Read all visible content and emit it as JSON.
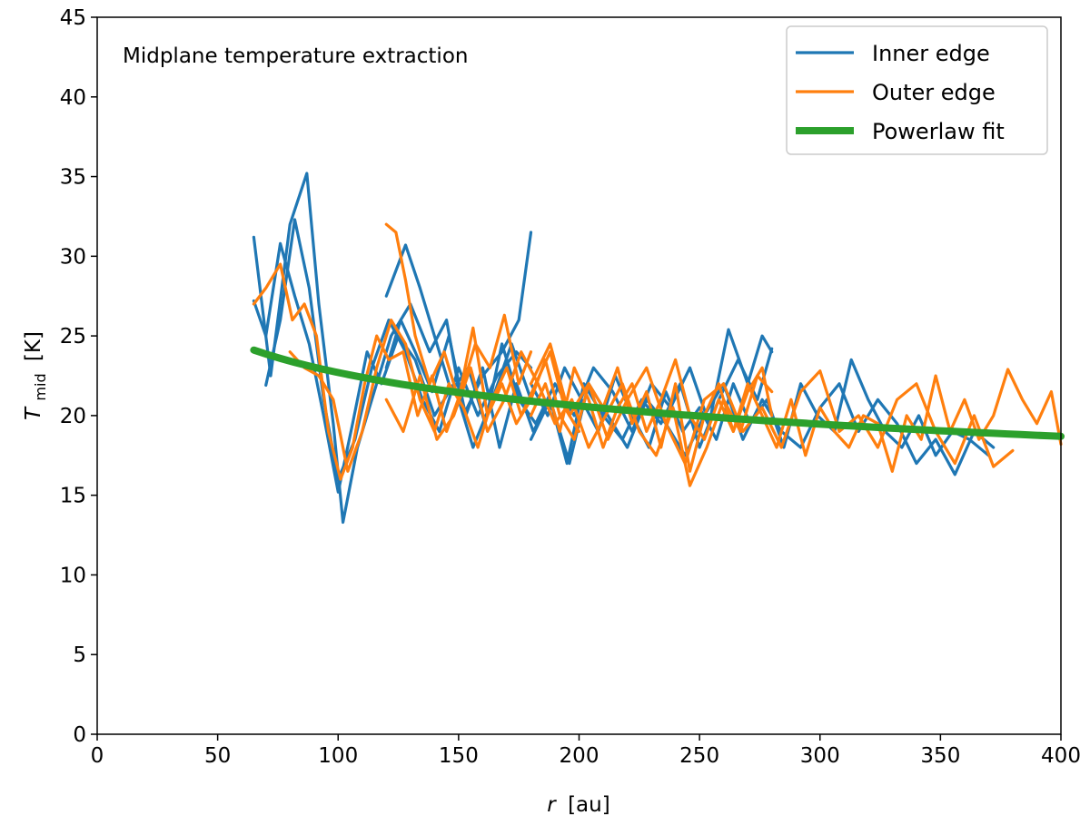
{
  "chart_data": {
    "type": "line",
    "title": "",
    "annotation": "Midplane temperature extraction",
    "xlabel": {
      "symbol": "r",
      "unit": "[au]"
    },
    "ylabel": {
      "symbol": "T",
      "subscript": "mid",
      "unit": "[K]"
    },
    "xlim": [
      0,
      400
    ],
    "ylim": [
      0,
      45
    ],
    "xticks": [
      0,
      50,
      100,
      150,
      200,
      250,
      300,
      350,
      400
    ],
    "yticks": [
      0,
      5,
      10,
      15,
      20,
      25,
      30,
      35,
      40,
      45
    ],
    "grid": false,
    "legend_position": "top-right",
    "colors": {
      "inner": "#1f77b4",
      "outer": "#ff7f0e",
      "fit": "#2ca02c"
    },
    "legend": [
      {
        "name": "Inner edge",
        "color": "#1f77b4"
      },
      {
        "name": "Outer edge",
        "color": "#ff7f0e"
      },
      {
        "name": "Powerlaw fit",
        "color": "#2ca02c"
      }
    ],
    "series": [
      {
        "name": "Inner edge",
        "group": "inner",
        "color": "#1f77b4",
        "x": [
          65,
          72,
          80,
          87,
          92,
          98,
          102,
          108,
          115,
          122,
          130,
          138,
          145,
          152,
          160,
          168,
          175,
          180
        ],
        "y": [
          31.2,
          22.5,
          32,
          35.2,
          27,
          19.5,
          13.3,
          18,
          21.5,
          25,
          27,
          24,
          26,
          20,
          22.5,
          24,
          26,
          31.5
        ]
      },
      {
        "name": "Inner edge",
        "group": "inner",
        "color": "#1f77b4",
        "x": [
          65,
          70,
          76,
          82,
          88,
          94,
          100,
          106,
          112,
          118,
          125,
          132,
          140,
          148,
          156,
          164,
          172,
          180
        ],
        "y": [
          27.2,
          25,
          30.8,
          27.5,
          24.5,
          20,
          15.2,
          19.5,
          24,
          22,
          25,
          23.5,
          20,
          22,
          18,
          21,
          24.5,
          21
        ]
      },
      {
        "name": "Inner edge",
        "group": "inner",
        "color": "#1f77b4",
        "x": [
          70,
          76,
          82,
          88,
          94,
          100,
          107,
          114,
          121,
          128,
          135,
          142,
          150,
          158,
          166,
          174,
          180
        ],
        "y": [
          21.9,
          26,
          32.3,
          28,
          21,
          16,
          18.5,
          23,
          26,
          24,
          21,
          19,
          23,
          20,
          22.5,
          24,
          23
        ]
      },
      {
        "name": "Inner edge",
        "group": "inner",
        "color": "#1f77b4",
        "x": [
          120,
          128,
          134,
          140,
          147,
          154,
          161,
          168,
          175,
          182,
          190,
          198,
          206,
          214,
          222,
          230,
          238,
          246,
          254,
          262,
          270,
          276,
          280
        ],
        "y": [
          27.5,
          30.7,
          28,
          25,
          21.5,
          23,
          19.5,
          24.5,
          21,
          19.5,
          22,
          20,
          23,
          21.5,
          19,
          22,
          20.5,
          23,
          19.5,
          25.4,
          22,
          25,
          24
        ]
      },
      {
        "name": "Inner edge",
        "group": "inner",
        "color": "#1f77b4",
        "x": [
          120,
          126,
          132,
          139,
          146,
          153,
          160,
          167,
          174,
          181,
          188,
          195,
          202,
          210,
          218,
          226,
          234,
          242,
          250,
          258,
          266,
          274,
          280
        ],
        "y": [
          23,
          26,
          24,
          21.5,
          25,
          20,
          23,
          18,
          22,
          19,
          21,
          17,
          22,
          20,
          18.5,
          21,
          19.5,
          22,
          18,
          21,
          23.5,
          21,
          24.2
        ]
      },
      {
        "name": "Inner edge",
        "group": "inner",
        "color": "#1f77b4",
        "x": [
          180,
          188,
          196,
          204,
          212,
          220,
          228,
          236,
          244,
          252,
          260,
          268,
          276,
          284,
          292,
          300,
          308,
          316,
          324,
          332,
          340,
          348,
          356,
          364,
          372
        ],
        "y": [
          18.5,
          21,
          17,
          22,
          20,
          18,
          21,
          19.5,
          17.5,
          20,
          22,
          18.5,
          21,
          19,
          18,
          20.5,
          22,
          19,
          21,
          19.5,
          17,
          18.5,
          16.3,
          19,
          18
        ]
      },
      {
        "name": "Inner edge",
        "group": "inner",
        "color": "#1f77b4",
        "x": [
          180,
          187,
          194,
          201,
          208,
          215,
          222,
          229,
          236,
          243,
          250,
          257,
          264,
          271,
          278,
          285,
          292,
          299,
          306,
          313,
          320,
          327,
          334,
          341,
          348,
          355,
          362,
          370
        ],
        "y": [
          22,
          20,
          23,
          21,
          19,
          22.5,
          20,
          18,
          21.5,
          19,
          20.5,
          18.5,
          22,
          19.5,
          21,
          18,
          22,
          20,
          19,
          23.5,
          21,
          19,
          18,
          20,
          17.5,
          19,
          18.5,
          17.5
        ]
      },
      {
        "name": "Outer edge",
        "group": "outer",
        "color": "#ff7f0e",
        "x": [
          65,
          70,
          76,
          81,
          86,
          91,
          96,
          101,
          106,
          111,
          116,
          121,
          127,
          133,
          139,
          145,
          151,
          157,
          163,
          169,
          175,
          180
        ],
        "y": [
          27,
          28,
          29.5,
          26,
          27,
          25,
          19,
          16,
          18,
          22,
          25,
          23.5,
          24,
          20,
          22.5,
          19,
          21.5,
          24.5,
          23,
          26.3,
          22,
          24
        ]
      },
      {
        "name": "Outer edge",
        "group": "outer",
        "color": "#ff7f0e",
        "x": [
          80,
          86,
          92,
          98,
          104,
          110,
          116,
          122,
          128,
          134,
          140,
          146,
          152,
          158,
          164,
          170,
          176,
          182,
          188,
          194,
          200
        ],
        "y": [
          24,
          23,
          22.5,
          21,
          16.5,
          19,
          23,
          26,
          24.5,
          21,
          19,
          22,
          20.5,
          18,
          21,
          23,
          20,
          22,
          24,
          20.5,
          19
        ]
      },
      {
        "name": "Outer edge",
        "group": "outer",
        "color": "#ff7f0e",
        "x": [
          120,
          124,
          128,
          132,
          138,
          144,
          150,
          156,
          162,
          168,
          174,
          180,
          186,
          192,
          198,
          204,
          210,
          216,
          222,
          228,
          234,
          240,
          246,
          252,
          258,
          264,
          270,
          276,
          280
        ],
        "y": [
          32,
          31.5,
          28.5,
          25,
          22,
          24,
          21,
          25.5,
          20,
          22,
          19.5,
          21,
          23.5,
          20,
          18.5,
          22,
          20.5,
          23,
          19.5,
          21.5,
          18,
          22,
          16.5,
          20,
          22,
          19,
          21.5,
          23,
          20
        ]
      },
      {
        "name": "Outer edge",
        "group": "outer",
        "color": "#ff7f0e",
        "x": [
          120,
          127,
          134,
          141,
          148,
          155,
          162,
          169,
          176,
          183,
          190,
          197,
          204,
          211,
          218,
          225,
          232,
          239,
          246,
          253,
          260,
          267,
          274,
          280
        ],
        "y": [
          21,
          19,
          22.5,
          18.5,
          20,
          23,
          19,
          21,
          24,
          22,
          19.5,
          21,
          18,
          20,
          22,
          19,
          17.5,
          20.5,
          15.6,
          18,
          21,
          19,
          22.5,
          21.5
        ]
      },
      {
        "name": "Outer edge",
        "group": "outer",
        "color": "#ff7f0e",
        "x": [
          180,
          188,
          196,
          204,
          212,
          220,
          228,
          236,
          244,
          252,
          260,
          268,
          276,
          284,
          292,
          300,
          308,
          316,
          324,
          332,
          340,
          348,
          356,
          364,
          372,
          380
        ],
        "y": [
          22,
          24.5,
          20,
          22,
          18.5,
          21,
          23,
          19.5,
          17,
          21,
          22,
          19,
          20.5,
          18,
          21.5,
          22.8,
          19,
          20,
          18,
          21,
          22,
          19,
          17,
          20,
          16.8,
          17.8
        ]
      },
      {
        "name": "Outer edge",
        "group": "outer",
        "color": "#ff7f0e",
        "x": [
          180,
          186,
          192,
          198,
          204,
          210,
          216,
          222,
          228,
          234,
          240,
          246,
          252,
          258,
          264,
          270,
          276,
          282,
          288,
          294,
          300,
          306,
          312,
          318,
          324,
          330,
          336,
          342,
          348,
          354,
          360,
          366,
          372,
          378,
          384,
          390,
          396,
          400
        ],
        "y": [
          20,
          22,
          19,
          23,
          21,
          18,
          20.5,
          22,
          19,
          21,
          23.5,
          20,
          18.5,
          21,
          19,
          22,
          20,
          18,
          21,
          17.5,
          20.5,
          19,
          18,
          20,
          19.5,
          16.5,
          20,
          18.5,
          22.5,
          19,
          21,
          18.5,
          20,
          22.9,
          21,
          19.5,
          21.5,
          18.2
        ]
      }
    ],
    "fit": {
      "name": "Powerlaw fit",
      "color": "#2ca02c",
      "x_start": 65,
      "x_end": 400,
      "amplitude_at_100au": 22.7,
      "exponent": -0.14
    }
  }
}
